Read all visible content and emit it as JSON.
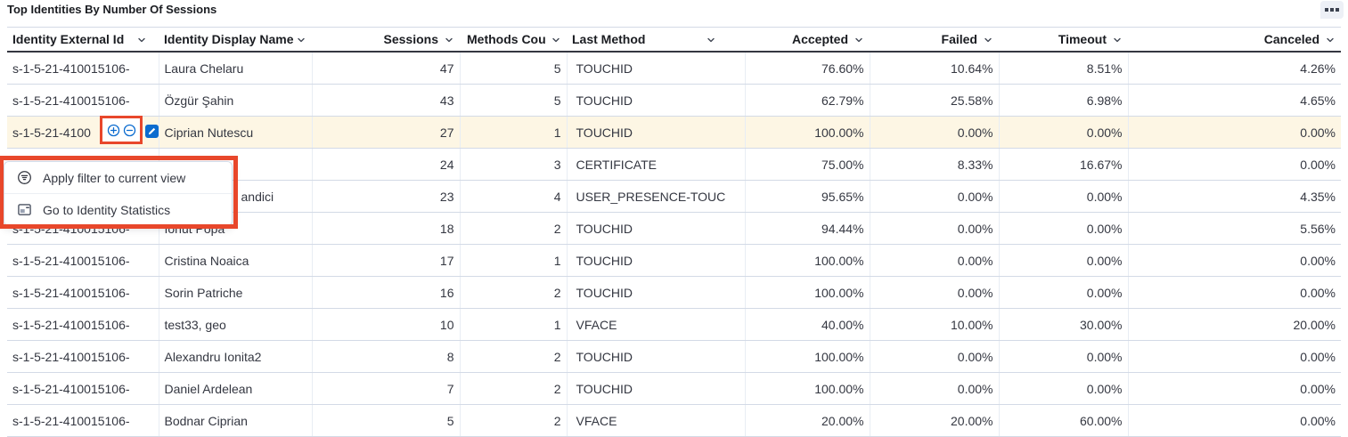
{
  "colors": {
    "annotation_red": "#e8472b",
    "highlight_row_bg": "#fdf6e4",
    "action_blue": "#0b6bcf"
  },
  "panel": {
    "title": "Top Identities By Number Of Sessions"
  },
  "icons": {
    "panel_options": "boxes-horizontal",
    "header_sort": "chevron-down",
    "filter_for": "plus-in-circle",
    "filter_out": "minus-in-circle",
    "edit_badge": "pencil",
    "menu_item_1": "filter-in-circle",
    "menu_item_2": "identity-statistics-app"
  },
  "table": {
    "columns": [
      "Identity External Id",
      "Identity Display Name",
      "Sessions",
      "Methods Count",
      "Last Method",
      "Accepted",
      "Failed",
      "Timeout",
      "Canceled"
    ],
    "highlighted_row_index": 2,
    "rows": [
      [
        "s-1-5-21-410015106-",
        "Laura Chelaru",
        "47",
        "5",
        "TOUCHID",
        "76.60%",
        "10.64%",
        "8.51%",
        "4.26%"
      ],
      [
        "s-1-5-21-410015106-",
        "Özgür Şahin",
        "43",
        "5",
        "TOUCHID",
        "62.79%",
        "25.58%",
        "6.98%",
        "4.65%"
      ],
      [
        "s-1-5-21-4100",
        "Ciprian Nutescu",
        "27",
        "1",
        "TOUCHID",
        "100.00%",
        "0.00%",
        "0.00%",
        "0.00%"
      ],
      [
        "",
        "",
        "24",
        "3",
        "CERTIFICATE",
        "75.00%",
        "8.33%",
        "16.67%",
        "0.00%"
      ],
      [
        "",
        "andici",
        "23",
        "4",
        "USER_PRESENCE-TOUC",
        "95.65%",
        "0.00%",
        "0.00%",
        "4.35%"
      ],
      [
        "s-1-5-21-410015106-",
        "Ionut Popa",
        "18",
        "2",
        "TOUCHID",
        "94.44%",
        "0.00%",
        "0.00%",
        "5.56%"
      ],
      [
        "s-1-5-21-410015106-",
        "Cristina Noaica",
        "17",
        "1",
        "TOUCHID",
        "100.00%",
        "0.00%",
        "0.00%",
        "0.00%"
      ],
      [
        "s-1-5-21-410015106-",
        "Sorin Patriche",
        "16",
        "2",
        "TOUCHID",
        "100.00%",
        "0.00%",
        "0.00%",
        "0.00%"
      ],
      [
        "s-1-5-21-410015106-",
        "test33, geo",
        "10",
        "1",
        "VFACE",
        "40.00%",
        "10.00%",
        "30.00%",
        "20.00%"
      ],
      [
        "s-1-5-21-410015106-",
        "Alexandru Ionita2",
        "8",
        "2",
        "TOUCHID",
        "100.00%",
        "0.00%",
        "0.00%",
        "0.00%"
      ],
      [
        "s-1-5-21-410015106-",
        "Daniel Ardelean",
        "7",
        "2",
        "TOUCHID",
        "100.00%",
        "0.00%",
        "0.00%",
        "0.00%"
      ],
      [
        "s-1-5-21-410015106-",
        "Bodnar Ciprian",
        "5",
        "2",
        "VFACE",
        "20.00%",
        "20.00%",
        "60.00%",
        "0.00%"
      ]
    ]
  },
  "context_menu": {
    "items": [
      {
        "icon": "filter-in-circle",
        "label": "Apply filter to current view"
      },
      {
        "icon": "identity-statistics-app",
        "label": "Go to Identity Statistics"
      }
    ]
  }
}
